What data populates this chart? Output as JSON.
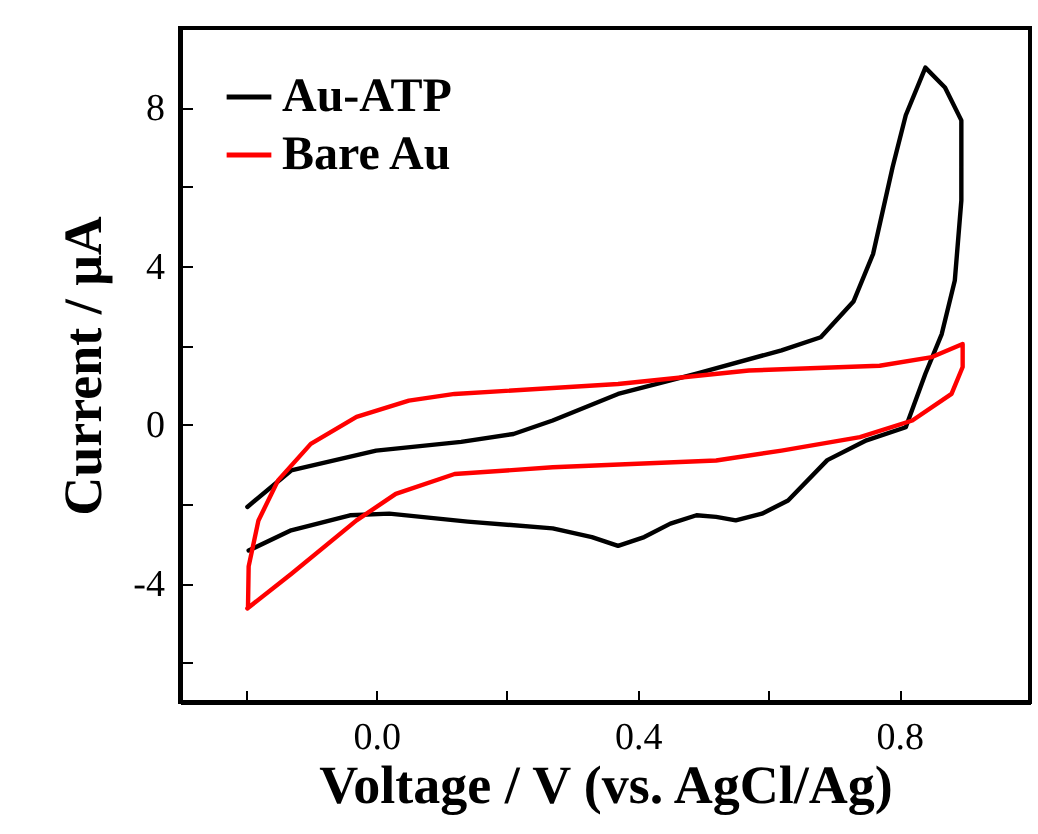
{
  "chart_data": {
    "type": "line",
    "xlabel": "Voltage / V (vs. AgCl/Ag)",
    "ylabel": "Current / μA",
    "xlim": [
      -0.3,
      1.0
    ],
    "ylim": [
      -7,
      10
    ],
    "xticks": [
      {
        "value": -0.2,
        "label": null
      },
      {
        "value": 0,
        "label": "0.0"
      },
      {
        "value": 0.2,
        "label": null
      },
      0.4,
      {
        "value": 0.6,
        "label": null
      },
      0.8
    ],
    "yticks": [
      {
        "value": -6,
        "label": null
      },
      -4,
      {
        "value": -2,
        "label": null
      },
      0,
      {
        "value": 2,
        "label": null
      },
      4,
      {
        "value": 6,
        "label": null
      },
      8
    ],
    "legend": "top left",
    "series": [
      {
        "name": "Au-ATP",
        "color": "#000000",
        "x": [
          -0.197,
          -0.13,
          0,
          0.13,
          0.21,
          0.27,
          0.37,
          0.49,
          0.62,
          0.68,
          0.73,
          0.76,
          0.79,
          0.81,
          0.84,
          0.87,
          0.895,
          0.895,
          0.885,
          0.865,
          0.84,
          0.81,
          0.75,
          0.69,
          0.63,
          0.59,
          0.55,
          0.52,
          0.49,
          0.45,
          0.41,
          0.37,
          0.33,
          0.27,
          0.14,
          0.02,
          -0.04,
          -0.13,
          -0.195
        ],
        "values": [
          -2.08,
          -1.16,
          -0.66,
          -0.44,
          -0.24,
          0.1,
          0.77,
          1.28,
          1.87,
          2.2,
          3.1,
          4.3,
          6.5,
          7.8,
          9.0,
          8.5,
          7.67,
          5.65,
          3.63,
          2.28,
          1.28,
          -0.07,
          -0.4,
          -0.9,
          -1.92,
          -2.25,
          -2.42,
          -2.33,
          -2.29,
          -2.5,
          -2.84,
          -3.06,
          -2.84,
          -2.62,
          -2.45,
          -2.25,
          -2.29,
          -2.67,
          -3.18
        ]
      },
      {
        "name": "Bare Au",
        "color": "#ff0000",
        "x": [
          -0.197,
          -0.13,
          -0.03,
          0.03,
          0.12,
          0.27,
          0.52,
          0.62,
          0.74,
          0.82,
          0.88,
          0.897,
          0.897,
          0.85,
          0.77,
          0.57,
          0.37,
          0.12,
          0.05,
          -0.03,
          -0.1,
          -0.15,
          -0.18,
          -0.195,
          -0.196
        ],
        "values": [
          -4.64,
          -3.77,
          -2.42,
          -1.75,
          -1.25,
          -1.08,
          -0.91,
          -0.66,
          -0.32,
          0.1,
          0.77,
          1.45,
          2.03,
          1.7,
          1.48,
          1.36,
          1.02,
          0.77,
          0.6,
          0.19,
          -0.49,
          -1.41,
          -2.42,
          -3.58,
          -4.6
        ]
      }
    ]
  }
}
